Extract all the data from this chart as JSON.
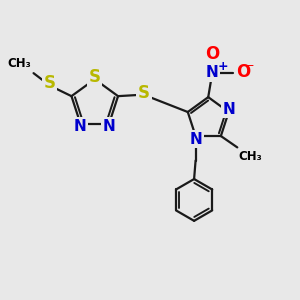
{
  "bg_color": "#e8e8e8",
  "atom_colors": {
    "C": "#000000",
    "N": "#0000cd",
    "S": "#b8b800",
    "O": "#ff0000",
    "H": "#000000"
  },
  "bond_color": "#1a1a1a",
  "bond_width": 1.6,
  "fig_bg": "#e8e8e8"
}
